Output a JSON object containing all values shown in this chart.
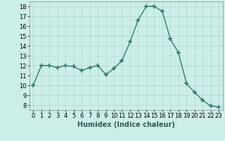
{
  "x": [
    0,
    1,
    2,
    3,
    4,
    5,
    6,
    7,
    8,
    9,
    10,
    11,
    12,
    13,
    14,
    15,
    16,
    17,
    18,
    19,
    20,
    21,
    22,
    23
  ],
  "y": [
    10,
    12,
    12,
    11.8,
    12,
    11.9,
    11.5,
    11.8,
    12,
    11.1,
    11.7,
    12.5,
    14.4,
    16.6,
    18.0,
    18.0,
    17.5,
    14.7,
    13.3,
    10.2,
    9.3,
    8.5,
    7.9,
    7.8
  ],
  "line_color": "#2e7d6e",
  "marker": "+",
  "marker_size": 4,
  "bg_color": "#cceee8",
  "grid_color": "#b0d4cc",
  "xlabel": "Humidex (Indice chaleur)",
  "ylim": [
    7.5,
    18.5
  ],
  "xlim": [
    -0.5,
    23.5
  ],
  "yticks": [
    8,
    9,
    10,
    11,
    12,
    13,
    14,
    15,
    16,
    17,
    18
  ],
  "xticks": [
    0,
    1,
    2,
    3,
    4,
    5,
    6,
    7,
    8,
    9,
    10,
    11,
    12,
    13,
    14,
    15,
    16,
    17,
    18,
    19,
    20,
    21,
    22,
    23
  ],
  "xlabel_fontsize": 7,
  "tick_fontsize": 6,
  "linewidth": 1.0,
  "marker_linewidth": 1.2
}
